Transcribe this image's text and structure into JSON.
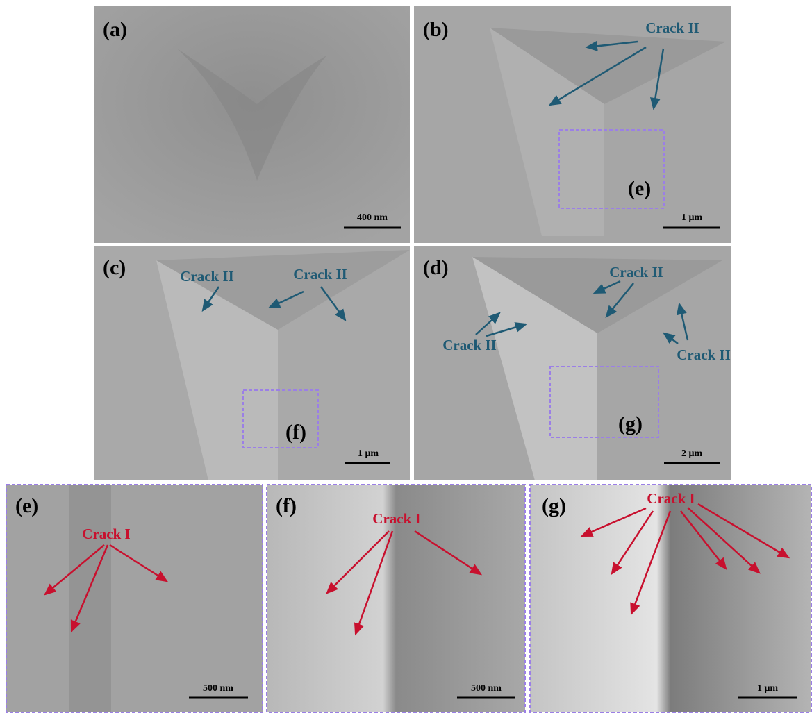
{
  "panels": [
    {
      "label": "(a)",
      "scale_bar": "400 nm"
    },
    {
      "label": "(b)",
      "scale_bar": "1 μm",
      "annotations": [
        "Crack II"
      ],
      "inset_label": "(e)"
    },
    {
      "label": "(c)",
      "scale_bar": "1 μm",
      "annotations": [
        "Crack II",
        "Crack II"
      ],
      "inset_label": "(f)"
    },
    {
      "label": "(d)",
      "scale_bar": "2 μm",
      "annotations": [
        "Crack II",
        "Crack II",
        "Crack II"
      ],
      "inset_label": "(g)"
    },
    {
      "label": "(e)",
      "scale_bar": "500 nm",
      "annotations": [
        "Crack I"
      ]
    },
    {
      "label": "(f)",
      "scale_bar": "500 nm",
      "annotations": [
        "Crack I"
      ]
    },
    {
      "label": "(g)",
      "scale_bar": "1 μm",
      "annotations": [
        "Crack I"
      ]
    }
  ]
}
